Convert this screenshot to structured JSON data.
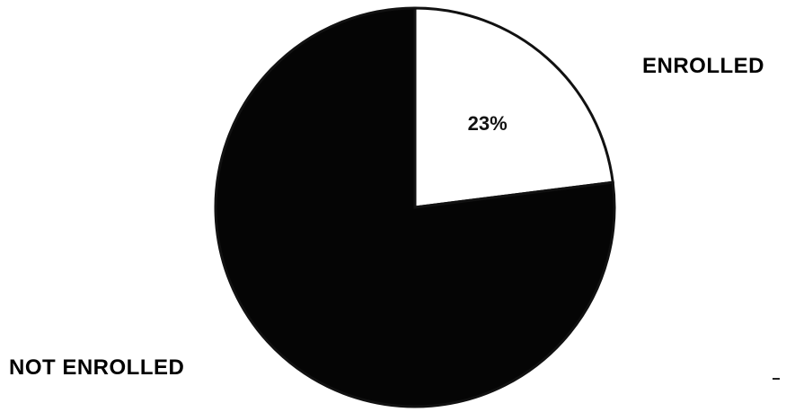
{
  "chart_data": {
    "type": "pie",
    "slices": [
      {
        "name": "ENROLLED",
        "value": 23,
        "label": "23%",
        "color": "#ffffff"
      },
      {
        "name": "NOT ENROLLED",
        "value": 77,
        "label": "",
        "color": "#050505"
      }
    ],
    "legend_placement": "outside, next to slices"
  }
}
